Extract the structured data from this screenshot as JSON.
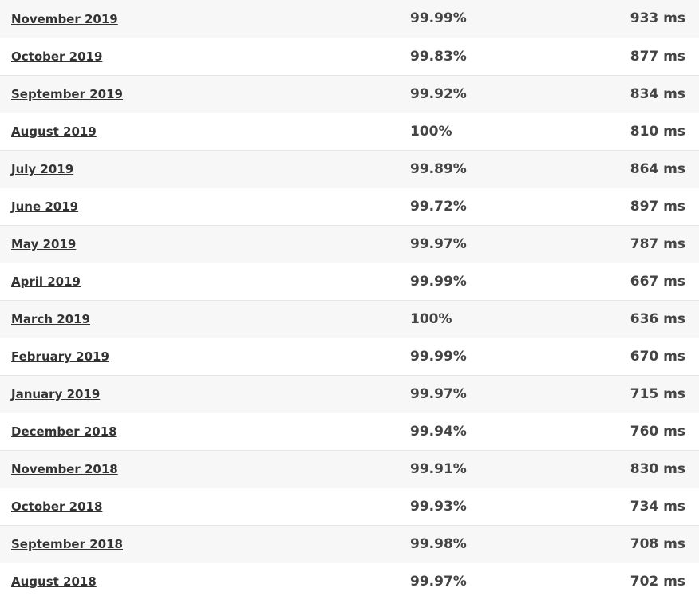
{
  "rows": [
    {
      "month": "November 2019",
      "uptime": "99.99%",
      "response": "933 ms"
    },
    {
      "month": "October 2019",
      "uptime": "99.83%",
      "response": "877 ms"
    },
    {
      "month": "September 2019",
      "uptime": "99.92%",
      "response": "834 ms"
    },
    {
      "month": "August 2019",
      "uptime": "100%",
      "response": "810 ms"
    },
    {
      "month": "July 2019",
      "uptime": "99.89%",
      "response": "864 ms"
    },
    {
      "month": "June 2019",
      "uptime": "99.72%",
      "response": "897 ms"
    },
    {
      "month": "May 2019",
      "uptime": "99.97%",
      "response": "787 ms"
    },
    {
      "month": "April 2019",
      "uptime": "99.99%",
      "response": "667 ms"
    },
    {
      "month": "March 2019",
      "uptime": "100%",
      "response": "636 ms"
    },
    {
      "month": "February 2019",
      "uptime": "99.99%",
      "response": "670 ms"
    },
    {
      "month": "January 2019",
      "uptime": "99.97%",
      "response": "715 ms"
    },
    {
      "month": "December 2018",
      "uptime": "99.94%",
      "response": "760 ms"
    },
    {
      "month": "November 2018",
      "uptime": "99.91%",
      "response": "830 ms"
    },
    {
      "month": "October 2018",
      "uptime": "99.93%",
      "response": "734 ms"
    },
    {
      "month": "September 2018",
      "uptime": "99.98%",
      "response": "708 ms"
    },
    {
      "month": "August 2018",
      "uptime": "99.97%",
      "response": "702 ms"
    }
  ],
  "colors": {
    "row_odd": "#f7f7f7",
    "row_even": "#ffffff",
    "text": "#444444",
    "link": "#333333",
    "divider": "#e6e6e6"
  }
}
